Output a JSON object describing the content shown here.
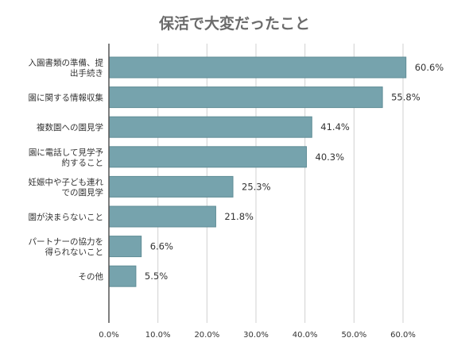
{
  "chart_data": {
    "type": "bar",
    "orientation": "horizontal",
    "title": "保活で大変だったこと",
    "categories": [
      [
        "入園書類の準備、提",
        "出手続き"
      ],
      [
        "園に関する情報収集"
      ],
      [
        "複数園への園見学"
      ],
      [
        "園に電話して見学予",
        "約すること"
      ],
      [
        "妊娠中や子ども連れ",
        "での園見学"
      ],
      [
        "園が決まらないこと"
      ],
      [
        "パートナーの協力を",
        "得られないこと"
      ],
      [
        "その他"
      ]
    ],
    "values": [
      60.6,
      55.8,
      41.4,
      40.3,
      25.3,
      21.8,
      6.6,
      5.5
    ],
    "data_labels": [
      "60.6%",
      "55.8%",
      "41.4%",
      "40.3%",
      "25.3%",
      "21.8%",
      "6.6%",
      "5.5%"
    ],
    "xlim": [
      0,
      60
    ],
    "x_ticks": [
      0,
      10,
      20,
      30,
      40,
      50,
      60
    ],
    "x_tick_labels": [
      "0.0%",
      "10.0%",
      "20.0%",
      "30.0%",
      "40.0%",
      "50.0%",
      "60.0%"
    ],
    "xlabel": "",
    "ylabel": "",
    "grid": true,
    "bar_color": "#76a3ad"
  }
}
